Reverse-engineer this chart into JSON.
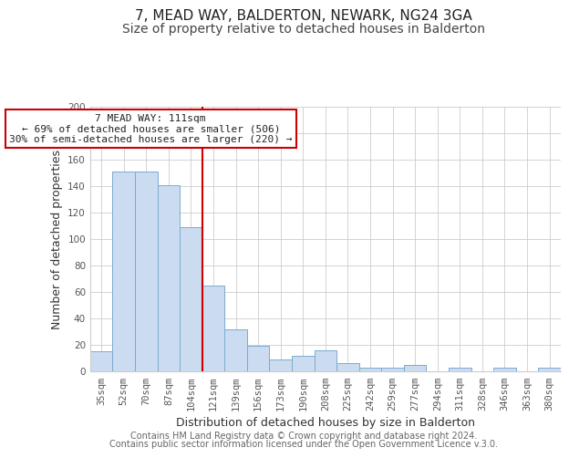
{
  "title": "7, MEAD WAY, BALDERTON, NEWARK, NG24 3GA",
  "subtitle": "Size of property relative to detached houses in Balderton",
  "xlabel": "Distribution of detached houses by size in Balderton",
  "ylabel": "Number of detached properties",
  "categories": [
    "35sqm",
    "52sqm",
    "70sqm",
    "87sqm",
    "104sqm",
    "121sqm",
    "139sqm",
    "156sqm",
    "173sqm",
    "190sqm",
    "208sqm",
    "225sqm",
    "242sqm",
    "259sqm",
    "277sqm",
    "294sqm",
    "311sqm",
    "328sqm",
    "346sqm",
    "363sqm",
    "380sqm"
  ],
  "values": [
    15,
    151,
    151,
    141,
    109,
    65,
    32,
    19,
    9,
    12,
    16,
    6,
    3,
    3,
    5,
    0,
    3,
    0,
    3,
    0,
    3
  ],
  "bar_color": "#ccdcf0",
  "bar_edge_color": "#7aaad0",
  "vline_x": 4.5,
  "vline_color": "#cc0000",
  "annotation_text": "7 MEAD WAY: 111sqm\n← 69% of detached houses are smaller (506)\n30% of semi-detached houses are larger (220) →",
  "annotation_box_color": "#ffffff",
  "annotation_box_edge_color": "#cc0000",
  "ylim": [
    0,
    200
  ],
  "yticks": [
    0,
    20,
    40,
    60,
    80,
    100,
    120,
    140,
    160,
    180,
    200
  ],
  "footer_line1": "Contains HM Land Registry data © Crown copyright and database right 2024.",
  "footer_line2": "Contains public sector information licensed under the Open Government Licence v.3.0.",
  "bg_color": "#ffffff",
  "grid_color": "#cccccc",
  "title_fontsize": 11,
  "subtitle_fontsize": 10,
  "axis_label_fontsize": 9,
  "tick_fontsize": 7.5,
  "footer_fontsize": 7,
  "annotation_fontsize": 8
}
